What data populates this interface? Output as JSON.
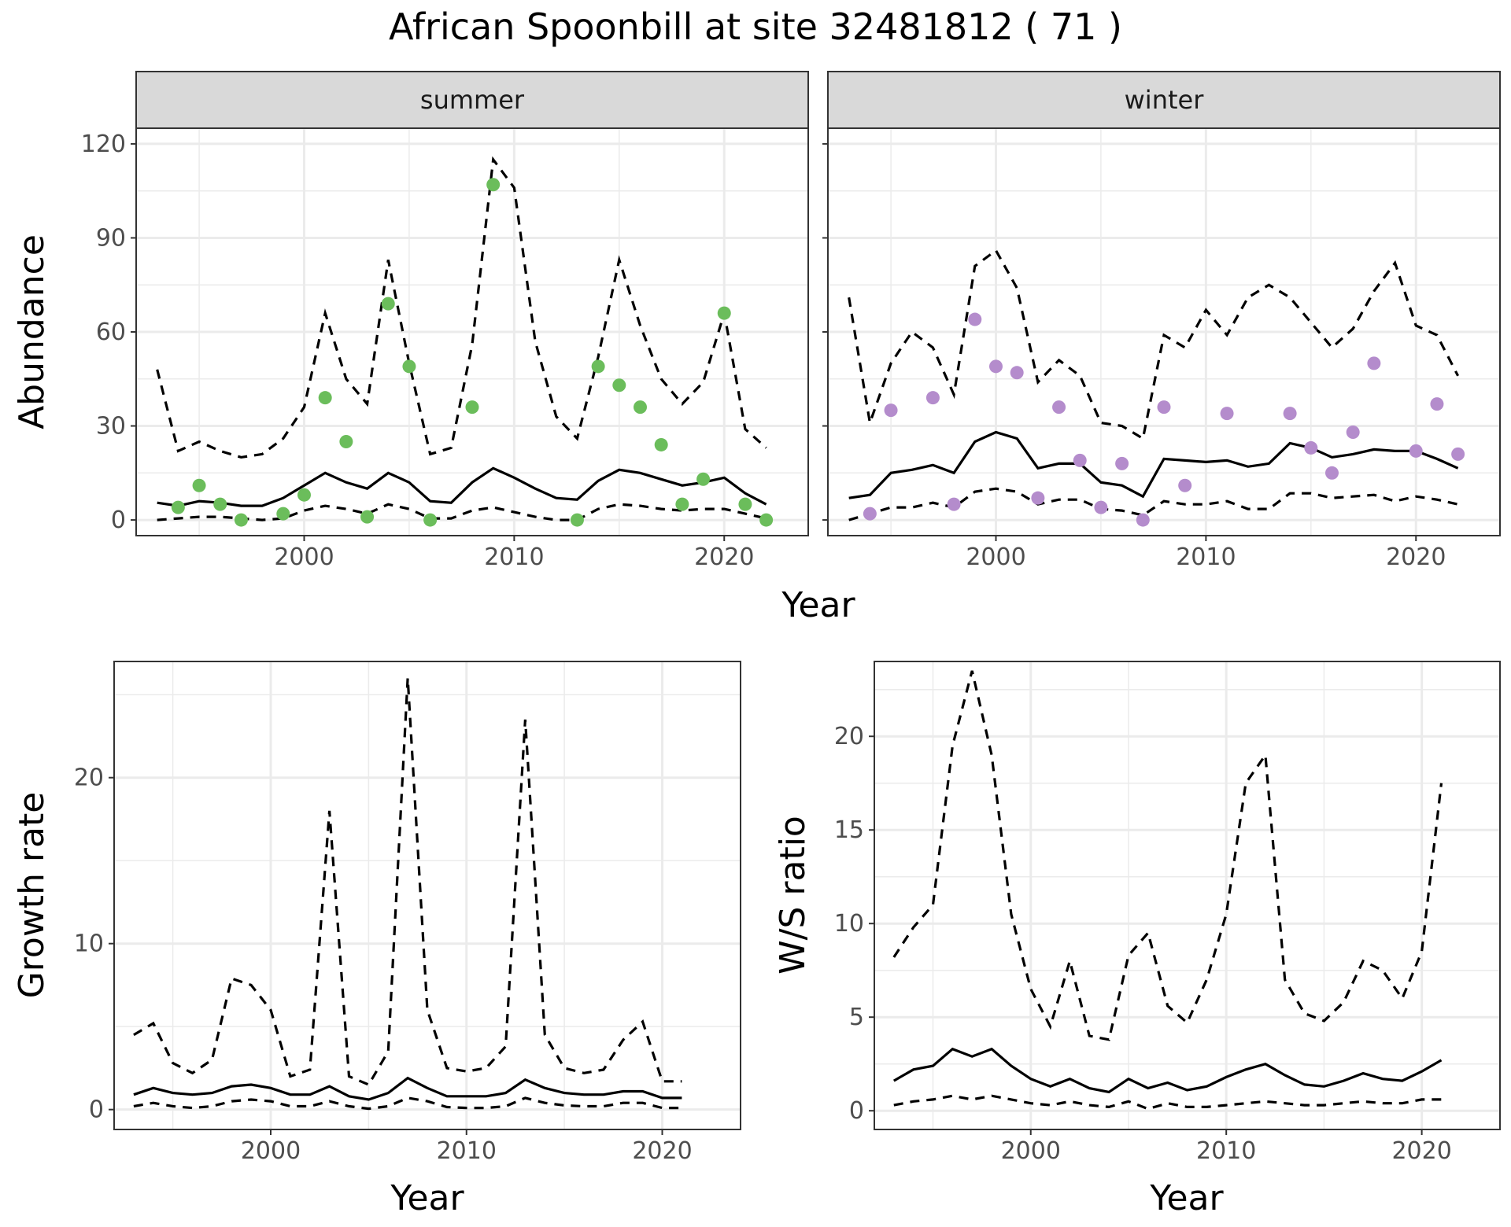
{
  "title": "African Spoonbill at site 32481812 ( 71 )",
  "colors": {
    "summer": "#6bbd5b",
    "winter": "#b48ccc",
    "grid": "#ebebeb",
    "line": "#000000"
  },
  "chart_data": [
    {
      "id": "abundance",
      "type": "line",
      "ylabel": "Abundance",
      "xlabel": "Year",
      "xlim": [
        1992,
        2024
      ],
      "ylim": [
        -5,
        125
      ],
      "xticks": [
        2000,
        2010,
        2020
      ],
      "yticks": [
        0,
        30,
        60,
        90,
        120
      ],
      "grid": true,
      "facets": [
        {
          "label": "summer",
          "point_color": "#6bbd5b",
          "x": [
            1993,
            1994,
            1995,
            1996,
            1997,
            1998,
            1999,
            2000,
            2001,
            2002,
            2003,
            2004,
            2005,
            2006,
            2007,
            2008,
            2009,
            2010,
            2011,
            2012,
            2013,
            2014,
            2015,
            2016,
            2017,
            2018,
            2019,
            2020,
            2021,
            2022
          ],
          "mean": [
            5.5,
            4.5,
            6,
            5.5,
            4.5,
            4.5,
            7,
            11,
            15,
            12,
            10,
            15,
            12,
            6,
            5.5,
            12,
            16.5,
            13.5,
            10,
            7,
            6.5,
            12.5,
            16,
            15,
            13,
            11,
            12,
            13.5,
            8.5,
            5
          ],
          "upper": [
            48,
            22,
            25,
            22,
            20,
            21,
            26,
            36,
            66,
            45,
            37,
            83,
            50,
            21,
            23,
            56,
            115,
            106,
            57,
            33,
            26,
            52,
            83,
            62,
            45,
            37,
            44,
            66,
            29,
            23
          ],
          "lower": [
            0,
            0.5,
            1,
            1,
            0.5,
            0,
            0.5,
            3,
            4.5,
            3.5,
            2,
            5,
            3.5,
            0.5,
            0.5,
            3,
            4,
            2.5,
            1,
            0,
            0,
            3.5,
            5,
            4.5,
            3.5,
            3,
            3.5,
            3.5,
            2,
            0.5
          ],
          "obs_x": [
            1994,
            1995,
            1996,
            1997,
            1999,
            2000,
            2001,
            2002,
            2003,
            2004,
            2005,
            2006,
            2008,
            2009,
            2013,
            2014,
            2015,
            2016,
            2017,
            2018,
            2019,
            2020,
            2021,
            2022
          ],
          "obs_y": [
            4,
            11,
            5,
            0,
            2,
            8,
            39,
            25,
            1,
            69,
            49,
            0,
            36,
            107,
            0,
            49,
            43,
            36,
            24,
            5,
            13,
            66,
            5,
            0
          ]
        },
        {
          "label": "winter",
          "point_color": "#b48ccc",
          "x": [
            1993,
            1994,
            1995,
            1996,
            1997,
            1998,
            1999,
            2000,
            2001,
            2002,
            2003,
            2004,
            2005,
            2006,
            2007,
            2008,
            2009,
            2010,
            2011,
            2012,
            2013,
            2014,
            2015,
            2016,
            2017,
            2018,
            2019,
            2020,
            2021,
            2022
          ],
          "mean": [
            7,
            8,
            15,
            16,
            17.5,
            15,
            25,
            28,
            26,
            16.5,
            18,
            18,
            12,
            11,
            7.5,
            19.5,
            19,
            18.5,
            19,
            17,
            18,
            24.5,
            23,
            20,
            21,
            22.5,
            22,
            22,
            19.5,
            16.5
          ],
          "upper": [
            71,
            31,
            50,
            60,
            55,
            40,
            81,
            86,
            74,
            44,
            51,
            46,
            31,
            30,
            26,
            59,
            55,
            67,
            59,
            71,
            75,
            71,
            63,
            55,
            61,
            73,
            82,
            62,
            59,
            46
          ],
          "lower": [
            0,
            2,
            4,
            4,
            5.5,
            4,
            9,
            10,
            9,
            5,
            6.5,
            6.5,
            3.5,
            3,
            1.5,
            6,
            5,
            5,
            6,
            3.5,
            3.5,
            8.5,
            8.5,
            7,
            7.5,
            8,
            6,
            7.5,
            6.5,
            5
          ],
          "obs_x": [
            1994,
            1995,
            1997,
            1998,
            1999,
            2000,
            2001,
            2002,
            2003,
            2004,
            2005,
            2006,
            2007,
            2008,
            2009,
            2011,
            2014,
            2015,
            2016,
            2017,
            2018,
            2020,
            2021,
            2022
          ],
          "obs_y": [
            2,
            35,
            39,
            5,
            64,
            49,
            47,
            7,
            36,
            19,
            4,
            18,
            0,
            36,
            11,
            34,
            34,
            23,
            15,
            28,
            50,
            22,
            37,
            21
          ]
        }
      ]
    },
    {
      "id": "growth",
      "type": "line",
      "ylabel": "Growth rate",
      "xlabel": "Year",
      "xlim": [
        1992,
        2024
      ],
      "ylim": [
        -1.2,
        27
      ],
      "xticks": [
        2000,
        2010,
        2020
      ],
      "yticks": [
        0,
        10,
        20
      ],
      "grid": true,
      "x": [
        1993,
        1994,
        1995,
        1996,
        1997,
        1998,
        1999,
        2000,
        2001,
        2002,
        2003,
        2004,
        2005,
        2006,
        2007,
        2008,
        2009,
        2010,
        2011,
        2012,
        2013,
        2014,
        2015,
        2016,
        2017,
        2018,
        2019,
        2020,
        2021
      ],
      "mean": [
        0.9,
        1.3,
        1,
        0.9,
        1,
        1.4,
        1.5,
        1.3,
        0.9,
        0.9,
        1.4,
        0.8,
        0.6,
        1,
        1.9,
        1.3,
        0.8,
        0.8,
        0.8,
        1,
        1.8,
        1.3,
        1,
        0.9,
        0.9,
        1.1,
        1.1,
        0.7,
        0.7
      ],
      "upper": [
        4.5,
        5.2,
        2.8,
        2.2,
        3,
        7.9,
        7.5,
        6,
        2,
        2.4,
        18,
        2,
        1.5,
        3.5,
        26,
        6,
        2.5,
        2.3,
        2.5,
        3.8,
        23.5,
        4.5,
        2.5,
        2.2,
        2.4,
        4.2,
        5.3,
        1.7,
        1.7
      ],
      "lower": [
        0.2,
        0.4,
        0.2,
        0.1,
        0.2,
        0.5,
        0.6,
        0.5,
        0.2,
        0.2,
        0.5,
        0.2,
        0.05,
        0.2,
        0.7,
        0.5,
        0.15,
        0.1,
        0.1,
        0.2,
        0.7,
        0.4,
        0.25,
        0.2,
        0.2,
        0.4,
        0.4,
        0.1,
        0.1
      ]
    },
    {
      "id": "ws_ratio",
      "type": "line",
      "ylabel": "W/S ratio",
      "xlabel": "Year",
      "xlim": [
        1992,
        2024
      ],
      "ylim": [
        -1,
        24
      ],
      "xticks": [
        2000,
        2010,
        2020
      ],
      "yticks": [
        0,
        5,
        10,
        15,
        20
      ],
      "grid": true,
      "x": [
        1993,
        1994,
        1995,
        1996,
        1997,
        1998,
        1999,
        2000,
        2001,
        2002,
        2003,
        2004,
        2005,
        2006,
        2007,
        2008,
        2009,
        2010,
        2011,
        2012,
        2013,
        2014,
        2015,
        2016,
        2017,
        2018,
        2019,
        2020,
        2021
      ],
      "mean": [
        1.6,
        2.2,
        2.4,
        3.3,
        2.9,
        3.3,
        2.4,
        1.7,
        1.3,
        1.7,
        1.2,
        1,
        1.7,
        1.2,
        1.5,
        1.1,
        1.3,
        1.8,
        2.2,
        2.5,
        1.9,
        1.4,
        1.3,
        1.6,
        2,
        1.7,
        1.6,
        2.1,
        2.7
      ],
      "upper": [
        8.2,
        9.8,
        11,
        19.5,
        23.5,
        19,
        10.5,
        6.5,
        4.5,
        8,
        4,
        3.8,
        8.3,
        9.5,
        5.6,
        4.7,
        7,
        10.5,
        17.5,
        19,
        7,
        5.2,
        4.8,
        5.8,
        8,
        7.5,
        6,
        8.5,
        17.5
      ],
      "lower": [
        0.3,
        0.5,
        0.6,
        0.8,
        0.6,
        0.8,
        0.6,
        0.4,
        0.3,
        0.5,
        0.3,
        0.2,
        0.5,
        0.1,
        0.4,
        0.2,
        0.2,
        0.3,
        0.4,
        0.5,
        0.4,
        0.3,
        0.3,
        0.4,
        0.5,
        0.4,
        0.4,
        0.6,
        0.6
      ]
    }
  ]
}
